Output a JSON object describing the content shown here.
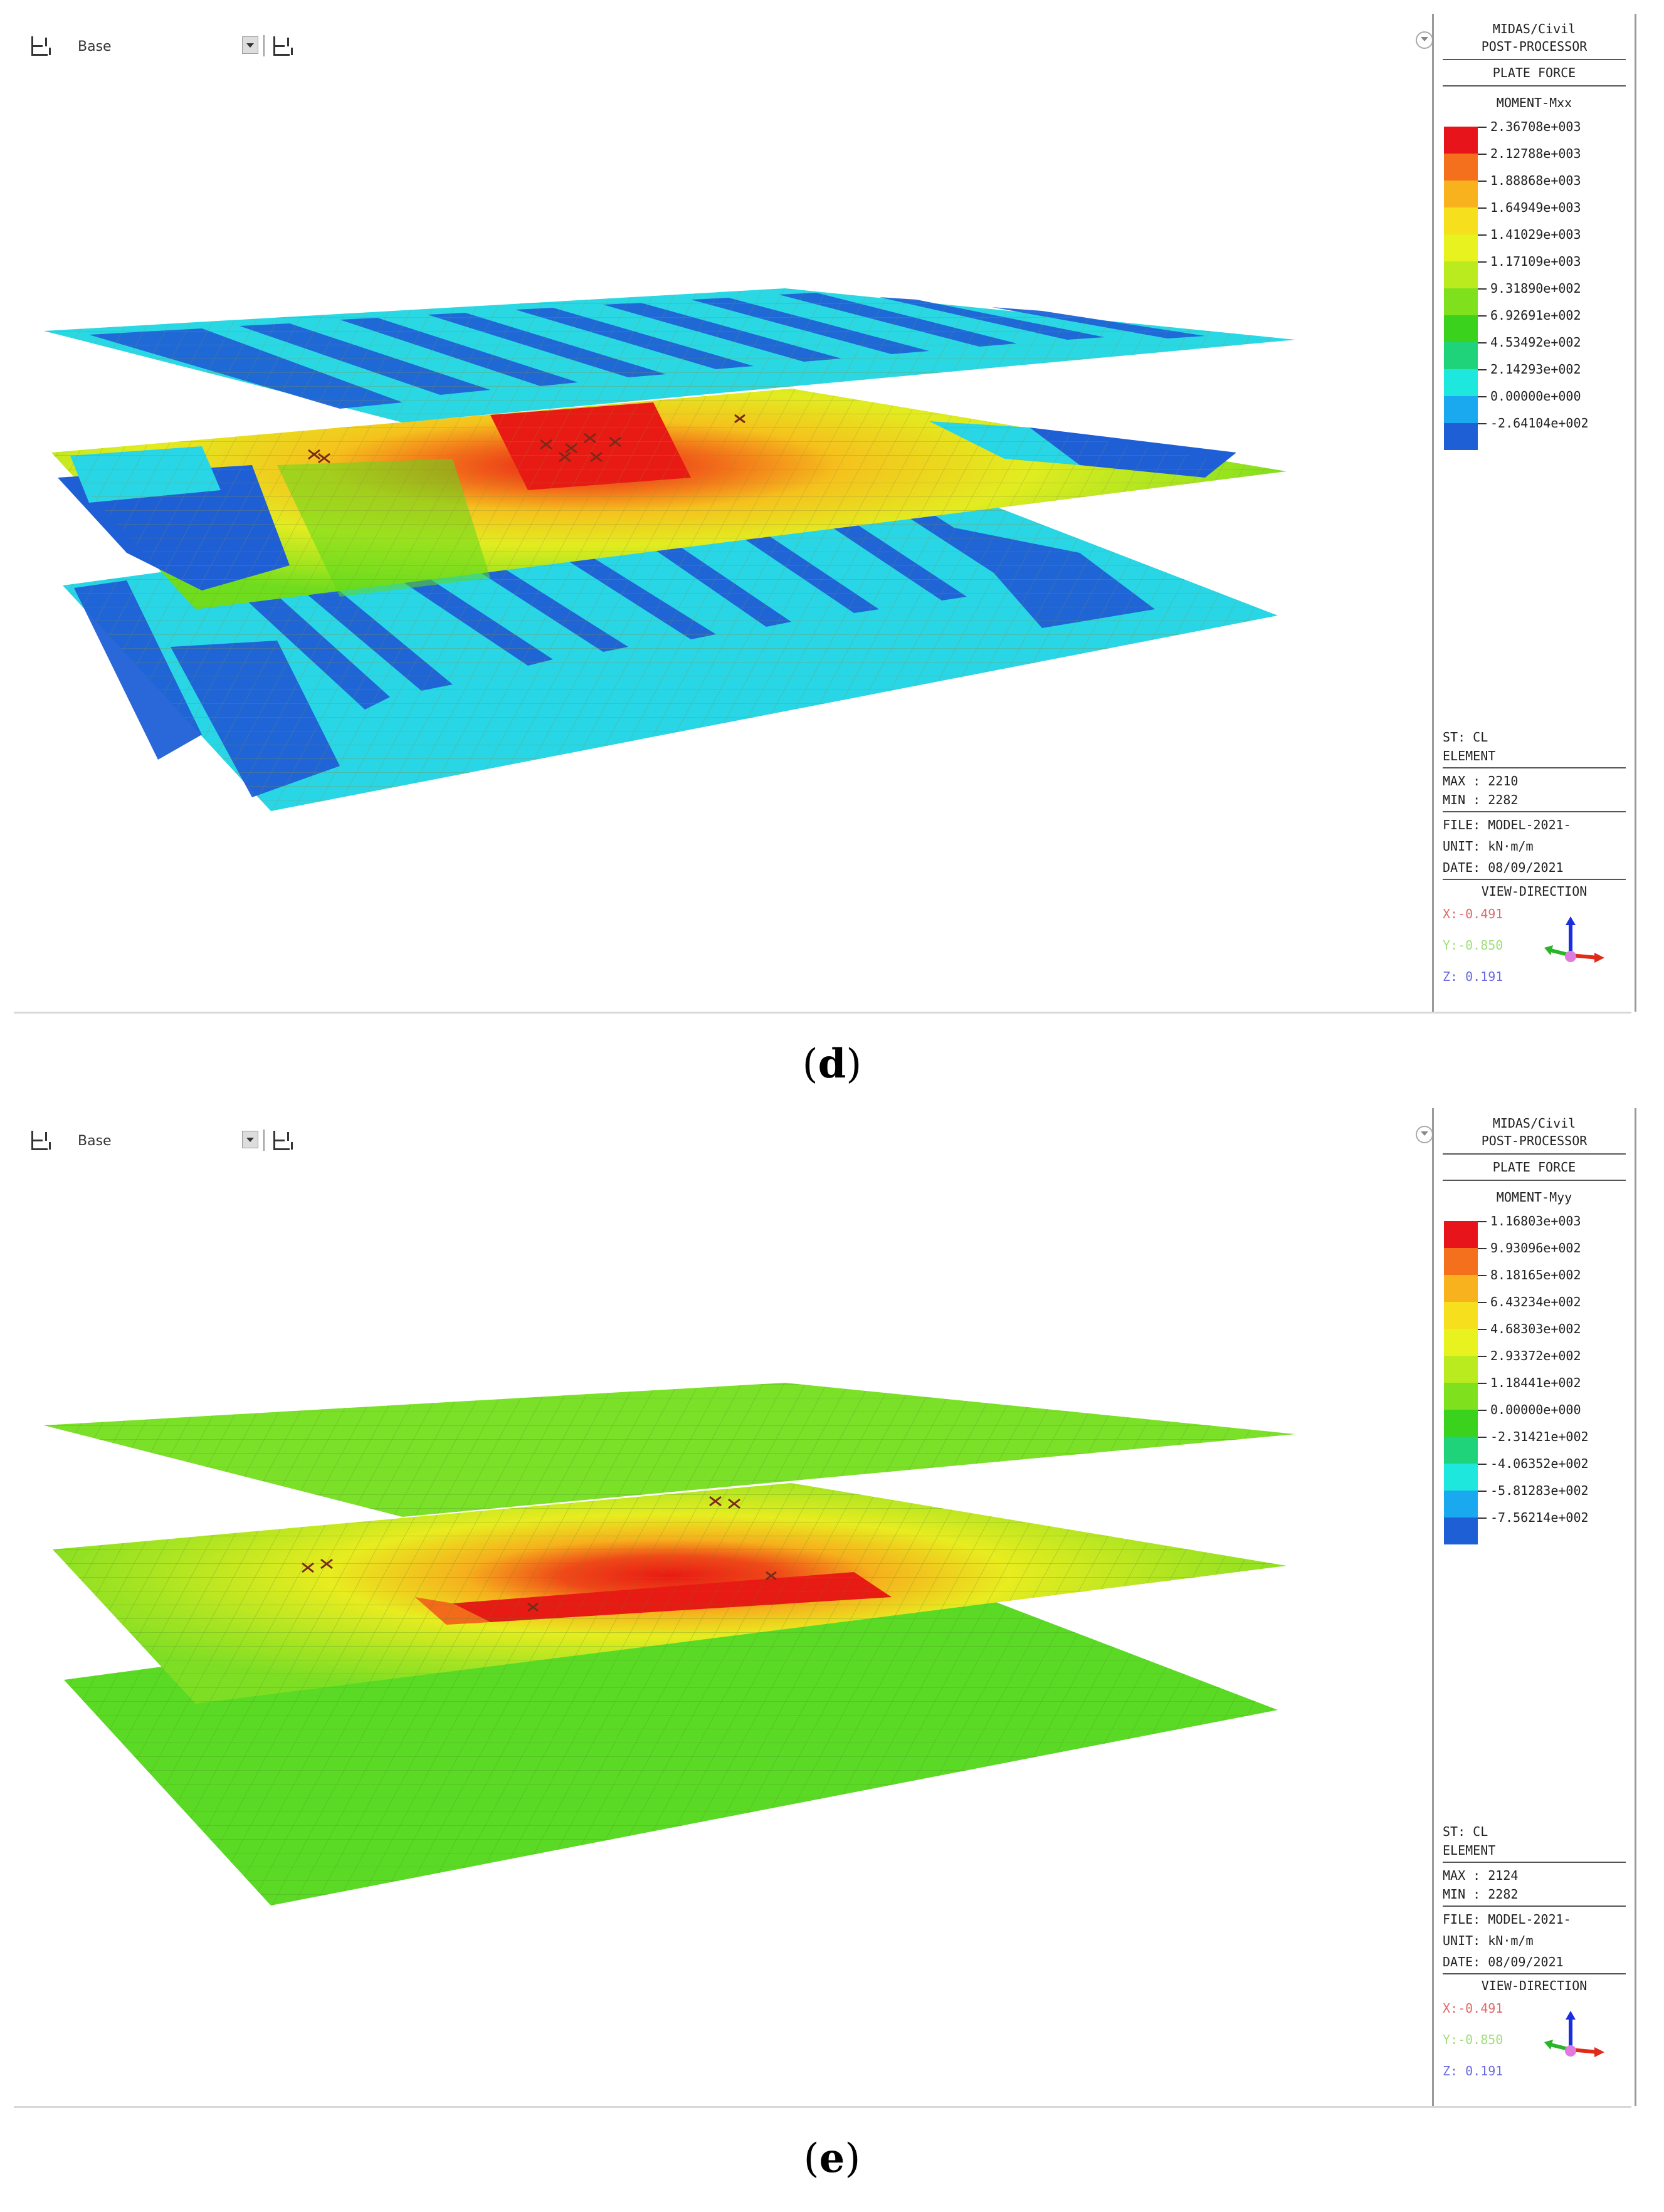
{
  "panels": [
    {
      "id": "d",
      "caption_letter": "d",
      "toolbar": {
        "label": "Base"
      },
      "post": {
        "header1": "MIDAS/Civil",
        "header2": "POST-PROCESSOR",
        "result_type": "PLATE FORCE",
        "component": "MOMENT-Mxx",
        "legend": [
          {
            "label": "2.36708e+003",
            "color": "#e8141c"
          },
          {
            "label": "2.12788e+003",
            "color": "#f4701c"
          },
          {
            "label": "1.88868e+003",
            "color": "#f7b21d"
          },
          {
            "label": "1.64949e+003",
            "color": "#f6e01e"
          },
          {
            "label": "1.41029e+003",
            "color": "#e7f21f"
          },
          {
            "label": "1.17109e+003",
            "color": "#b9eb1f"
          },
          {
            "label": "9.31890e+002",
            "color": "#7fe11e"
          },
          {
            "label": "6.92691e+002",
            "color": "#3ad21c"
          },
          {
            "label": "4.53492e+002",
            "color": "#1fd37a"
          },
          {
            "label": "2.14293e+002",
            "color": "#1ee8de"
          },
          {
            "label": "0.00000e+000",
            "color": "#1aa8ee"
          },
          {
            "label": "-2.64104e+002",
            "color": "#1f5fd6"
          }
        ],
        "st": "ST: CL",
        "element": "ELEMENT",
        "max": "MAX : 2210",
        "min": "MIN : 2282",
        "file": "FILE: MODEL-2021-",
        "unit": "UNIT: kN·m/m",
        "date": "DATE: 08/09/2021",
        "view_direction": "VIEW-DIRECTION",
        "vx": "X:-0.491",
        "vy": "Y:-0.850",
        "vz": "Z: 0.191"
      },
      "colors": {
        "top": "#2ad8e4",
        "top_band": "#1f64d6",
        "mid": "#d8ea22",
        "bottom": "#28d6e6",
        "bottom_band": "#1f5fd6",
        "hot": "#e81a14"
      }
    },
    {
      "id": "e",
      "caption_letter": "e",
      "toolbar": {
        "label": "Base"
      },
      "post": {
        "header1": "MIDAS/Civil",
        "header2": "POST-PROCESSOR",
        "result_type": "PLATE FORCE",
        "component": "MOMENT-Myy",
        "legend": [
          {
            "label": "1.16803e+003",
            "color": "#e8141c"
          },
          {
            "label": "9.93096e+002",
            "color": "#f4701c"
          },
          {
            "label": "8.18165e+002",
            "color": "#f7b21d"
          },
          {
            "label": "6.43234e+002",
            "color": "#f6e01e"
          },
          {
            "label": "4.68303e+002",
            "color": "#e7f21f"
          },
          {
            "label": "2.93372e+002",
            "color": "#b9eb1f"
          },
          {
            "label": "1.18441e+002",
            "color": "#7fe11e"
          },
          {
            "label": "0.00000e+000",
            "color": "#3ad21c"
          },
          {
            "label": "-2.31421e+002",
            "color": "#1fd37a"
          },
          {
            "label": "-4.06352e+002",
            "color": "#1ee8de"
          },
          {
            "label": "-5.81283e+002",
            "color": "#1aa8ee"
          },
          {
            "label": "-7.56214e+002",
            "color": "#1f5fd6"
          }
        ],
        "st": "ST: CL",
        "element": "ELEMENT",
        "max": "MAX : 2124",
        "min": "MIN : 2282",
        "file": "FILE: MODEL-2021-",
        "unit": "UNIT: kN·m/m",
        "date": "DATE: 08/09/2021",
        "view_direction": "VIEW-DIRECTION",
        "vx": "X:-0.491",
        "vy": "Y:-0.850",
        "vz": "Z: 0.191"
      },
      "colors": {
        "top": "#7be028",
        "top_band": "#5fd81e",
        "mid": "#a8e622",
        "bottom": "#5ada24",
        "bottom_band": "#3fd020",
        "hot": "#e81a14"
      }
    }
  ]
}
